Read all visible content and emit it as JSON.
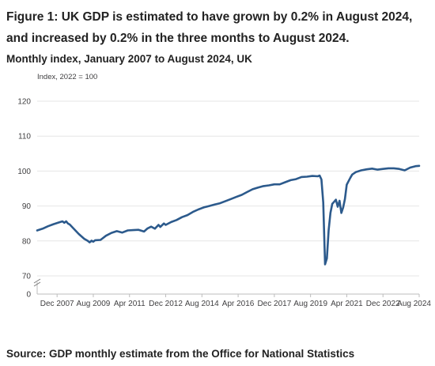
{
  "title": "Figure 1: UK GDP is estimated to have grown by 0.2% in August 2024, and increased by 0.2% in the three months to August 2024.",
  "subtitle": "Monthly index, January 2007 to August 2024, UK",
  "source": "Source: GDP monthly estimate from the Office for National Statistics",
  "colors": {
    "line": "#2c5a8c",
    "grid": "#e6e6e6",
    "axis": "#bcbcbc",
    "text": "#222222"
  },
  "chart_data": {
    "type": "line",
    "y_unit_label": "Index, 2022 = 100",
    "ylim": [
      0,
      125
    ],
    "y_axis_break": [
      0,
      70
    ],
    "y_ticks": [
      0,
      70,
      80,
      90,
      100,
      110,
      120
    ],
    "x_range": [
      "2007-01",
      "2024-08"
    ],
    "x_ticks": [
      "Dec 2007",
      "Aug 2009",
      "Apr 2011",
      "Dec 2012",
      "Aug 2014",
      "Apr 2016",
      "Dec 2017",
      "Aug 2019",
      "Apr 2021",
      "Dec 2022",
      "Aug 2024"
    ],
    "grid": true,
    "series": [
      {
        "x": [
          "2007-01",
          "2007-04",
          "2007-07",
          "2007-10",
          "2008-01",
          "2008-03",
          "2008-04",
          "2008-05",
          "2008-06",
          "2008-07",
          "2008-09",
          "2008-12",
          "2009-03",
          "2009-05",
          "2009-06",
          "2009-07",
          "2009-08",
          "2009-09",
          "2009-12",
          "2010-03",
          "2010-06",
          "2010-09",
          "2010-12",
          "2011-03",
          "2011-06",
          "2011-09",
          "2011-12",
          "2012-02",
          "2012-04",
          "2012-06",
          "2012-08",
          "2012-09",
          "2012-11",
          "2012-12",
          "2013-03",
          "2013-06",
          "2013-09",
          "2013-12",
          "2014-03",
          "2014-06",
          "2014-09",
          "2014-12",
          "2015-03",
          "2015-06",
          "2015-09",
          "2015-12",
          "2016-03",
          "2016-06",
          "2016-09",
          "2016-12",
          "2017-03",
          "2017-06",
          "2017-09",
          "2017-12",
          "2018-03",
          "2018-06",
          "2018-09",
          "2018-12",
          "2019-03",
          "2019-06",
          "2019-09",
          "2019-12",
          "2020-01",
          "2020-02",
          "2020-03",
          "2020-04",
          "2020-05",
          "2020-06",
          "2020-07",
          "2020-08",
          "2020-09",
          "2020-10",
          "2020-11",
          "2020-12",
          "2021-01",
          "2021-02",
          "2021-03",
          "2021-04",
          "2021-05",
          "2021-06",
          "2021-07",
          "2021-09",
          "2021-12",
          "2022-03",
          "2022-06",
          "2022-09",
          "2022-12",
          "2023-03",
          "2023-06",
          "2023-09",
          "2023-12",
          "2024-03",
          "2024-06",
          "2024-08"
        ],
        "values": [
          83.0,
          83.5,
          84.2,
          84.8,
          85.3,
          85.6,
          85.2,
          85.6,
          85.0,
          84.7,
          83.6,
          82.0,
          80.6,
          80.0,
          79.6,
          80.1,
          79.8,
          80.2,
          80.3,
          81.5,
          82.3,
          82.8,
          82.4,
          83.0,
          83.1,
          83.2,
          82.7,
          83.6,
          84.1,
          83.5,
          84.6,
          84.0,
          85.0,
          84.6,
          85.4,
          86.0,
          86.8,
          87.4,
          88.3,
          89.0,
          89.6,
          90.0,
          90.4,
          90.8,
          91.4,
          92.0,
          92.6,
          93.2,
          94.0,
          94.8,
          95.3,
          95.7,
          95.9,
          96.2,
          96.2,
          96.8,
          97.4,
          97.7,
          98.3,
          98.4,
          98.6,
          98.5,
          98.7,
          97.6,
          91.0,
          73.3,
          75.0,
          83.0,
          88.0,
          90.6,
          91.2,
          91.8,
          89.8,
          91.5,
          88.0,
          89.6,
          92.0,
          96.1,
          97.1,
          98.1,
          99.0,
          99.7,
          100.2,
          100.5,
          100.7,
          100.4,
          100.6,
          100.8,
          100.8,
          100.6,
          100.2,
          101.0,
          101.4,
          101.5
        ]
      }
    ]
  }
}
